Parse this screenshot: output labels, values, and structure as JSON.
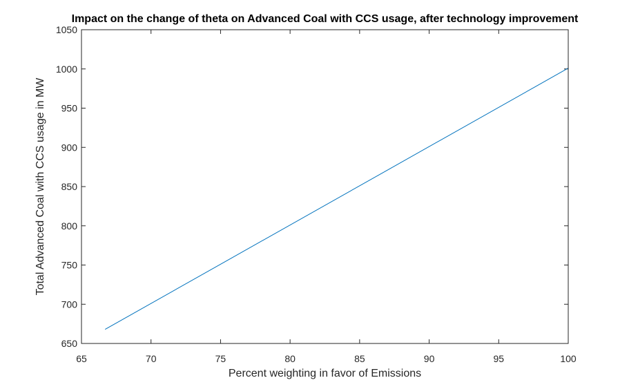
{
  "chart_data": {
    "type": "line",
    "title": "Impact on the change of theta on Advanced Coal with CCS usage, after technology improvement",
    "xlabel": "Percent weighting in favor of Emissions",
    "ylabel": "Total Advanced Coal with CCS usage in MW",
    "xlim": [
      65,
      100
    ],
    "ylim": [
      650,
      1050
    ],
    "xticks": [
      65,
      70,
      75,
      80,
      85,
      90,
      95,
      100
    ],
    "yticks": [
      650,
      700,
      750,
      800,
      850,
      900,
      950,
      1000,
      1050
    ],
    "grid": false,
    "series": [
      {
        "x": [
          66.7,
          100
        ],
        "y": [
          668,
          1001
        ],
        "color": "#0072BD"
      }
    ]
  }
}
